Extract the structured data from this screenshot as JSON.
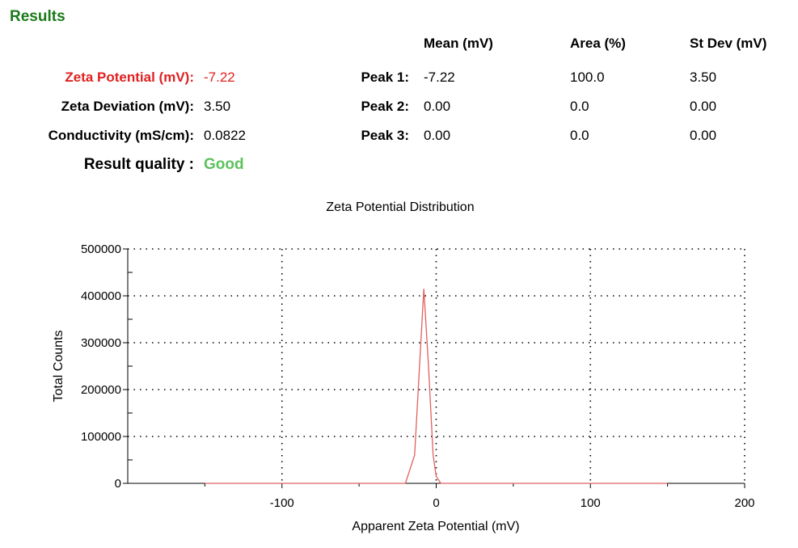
{
  "results": {
    "title": "Results",
    "columns": {
      "mean": "Mean (mV)",
      "area": "Area (%)",
      "stdev": "St Dev (mV)"
    },
    "summary": [
      {
        "label": "Zeta Potential (mV):",
        "value": "-7.22",
        "color": "#e02020"
      },
      {
        "label": "Zeta Deviation (mV):",
        "value": "3.50"
      },
      {
        "label": "Conductivity (mS/cm):",
        "value": "0.0822"
      },
      {
        "label": "Result quality :",
        "value": "Good",
        "color": "#5cc25c"
      }
    ],
    "peaks": [
      {
        "label": "Peak 1:",
        "mean": "-7.22",
        "area": "100.0",
        "stdev": "3.50"
      },
      {
        "label": "Peak 2:",
        "mean": "0.00",
        "area": "0.0",
        "stdev": "0.00"
      },
      {
        "label": "Peak 3:",
        "mean": "0.00",
        "area": "0.0",
        "stdev": "0.00"
      }
    ]
  },
  "chart_data": {
    "type": "line",
    "title": "Zeta Potential Distribution",
    "xlabel": "Apparent Zeta Potential (mV)",
    "ylabel": "Total Counts",
    "xlim": [
      -200,
      200
    ],
    "ylim": [
      0,
      500000
    ],
    "xticks": [
      -100,
      0,
      100,
      200
    ],
    "yticks": [
      0,
      100000,
      200000,
      300000,
      400000,
      500000
    ],
    "grid": true,
    "line_color": "#e06060",
    "series": [
      {
        "x": [
          -150,
          -20,
          -14,
          -8,
          -5,
          -2,
          0,
          3,
          150
        ],
        "y": [
          0,
          0,
          60000,
          415000,
          250000,
          60000,
          15000,
          0,
          0
        ]
      }
    ]
  }
}
